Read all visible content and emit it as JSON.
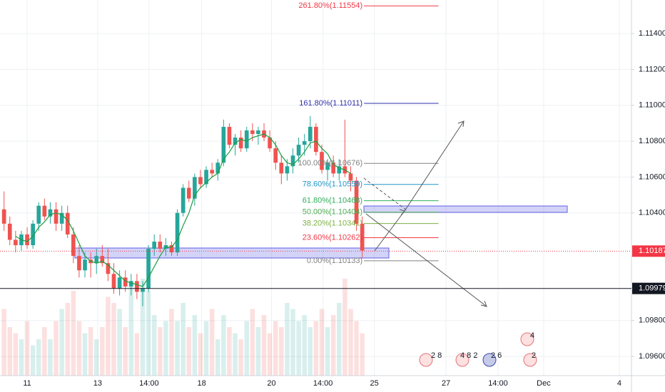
{
  "chart_data": {
    "type": "candlestick",
    "up_color": "#26a69a",
    "down_color": "#ef5350",
    "ohlc": [
      [
        1.1042,
        1.1052,
        1.103,
        1.1034
      ],
      [
        1.1034,
        1.1038,
        1.1022,
        1.1025
      ],
      [
        1.1025,
        1.103,
        1.1018,
        1.1022
      ],
      [
        1.1022,
        1.103,
        1.1019,
        1.1028
      ],
      [
        1.1028,
        1.1032,
        1.102,
        1.1022
      ],
      [
        1.1022,
        1.1036,
        1.102,
        1.1034
      ],
      [
        1.1034,
        1.1046,
        1.103,
        1.1044
      ],
      [
        1.1044,
        1.1048,
        1.1036,
        1.1038
      ],
      [
        1.1038,
        1.1046,
        1.1034,
        1.1042
      ],
      [
        1.1042,
        1.1046,
        1.103,
        1.1034
      ],
      [
        1.1034,
        1.1044,
        1.103,
        1.104
      ],
      [
        1.104,
        1.1044,
        1.1026,
        1.1028
      ],
      [
        1.1028,
        1.1032,
        1.1012,
        1.1016
      ],
      [
        1.1016,
        1.1022,
        1.1004,
        1.1008
      ],
      [
        1.1008,
        1.1018,
        1.1004,
        1.1014
      ],
      [
        1.1014,
        1.1018,
        1.1004,
        1.1012
      ],
      [
        1.1012,
        1.102,
        1.1006,
        1.1016
      ],
      [
        1.1016,
        1.1022,
        1.101,
        1.1012
      ],
      [
        1.1012,
        1.102,
        1.1002,
        1.1006
      ],
      [
        1.1006,
        1.1012,
        1.0995,
        1.0998
      ],
      [
        1.0998,
        1.1008,
        1.0994,
        1.1004
      ],
      [
        1.1004,
        1.1008,
        1.0996,
        1.0999
      ],
      [
        1.0999,
        1.1006,
        1.0994,
        1.1002
      ],
      [
        1.1002,
        1.1006,
        1.0992,
        1.0996
      ],
      [
        1.0996,
        1.1002,
        1.0988,
        1.0998
      ],
      [
        1.0998,
        1.1022,
        1.0996,
        1.102
      ],
      [
        1.102,
        1.1028,
        1.1016,
        1.1024
      ],
      [
        1.1024,
        1.1028,
        1.1018,
        1.102
      ],
      [
        1.102,
        1.1026,
        1.1016,
        1.1022
      ],
      [
        1.1022,
        1.1024,
        1.1016,
        1.1018
      ],
      [
        1.1018,
        1.1042,
        1.1016,
        1.104
      ],
      [
        1.104,
        1.1056,
        1.1038,
        1.1054
      ],
      [
        1.1054,
        1.1058,
        1.1046,
        1.1048
      ],
      [
        1.1048,
        1.1062,
        1.1044,
        1.106
      ],
      [
        1.106,
        1.1064,
        1.1054,
        1.1056
      ],
      [
        1.1056,
        1.1066,
        1.1054,
        1.1064
      ],
      [
        1.1064,
        1.1068,
        1.106,
        1.1062
      ],
      [
        1.1062,
        1.107,
        1.1058,
        1.1068
      ],
      [
        1.1068,
        1.1092,
        1.1066,
        1.1088
      ],
      [
        1.1088,
        1.109,
        1.1076,
        1.1078
      ],
      [
        1.1078,
        1.1084,
        1.1072,
        1.1082
      ],
      [
        1.1082,
        1.1086,
        1.1074,
        1.1076
      ],
      [
        1.1076,
        1.1088,
        1.1074,
        1.1086
      ],
      [
        1.1086,
        1.109,
        1.108,
        1.1084
      ],
      [
        1.1084,
        1.1088,
        1.1078,
        1.1086
      ],
      [
        1.1086,
        1.109,
        1.108,
        1.1082
      ],
      [
        1.1082,
        1.1086,
        1.1074,
        1.1076
      ],
      [
        1.1076,
        1.108,
        1.1064,
        1.1068
      ],
      [
        1.1068,
        1.1072,
        1.1056,
        1.1062
      ],
      [
        1.1062,
        1.107,
        1.1058,
        1.1066
      ],
      [
        1.1066,
        1.1076,
        1.1062,
        1.1072
      ],
      [
        1.1072,
        1.1082,
        1.1068,
        1.1078
      ],
      [
        1.1078,
        1.1084,
        1.1072,
        1.108
      ],
      [
        1.108,
        1.1094,
        1.1076,
        1.1088
      ],
      [
        1.1088,
        1.109,
        1.1072,
        1.1074
      ],
      [
        1.1074,
        1.1078,
        1.1062,
        1.1064
      ],
      [
        1.1064,
        1.107,
        1.1058,
        1.1068
      ],
      [
        1.1068,
        1.1072,
        1.106,
        1.1062
      ],
      [
        1.1062,
        1.107,
        1.1058,
        1.1066
      ],
      [
        1.1066,
        1.1092,
        1.106,
        1.1062
      ],
      [
        1.1062,
        1.1066,
        1.1052,
        1.1058
      ],
      [
        1.1058,
        1.106,
        1.103,
        1.1034
      ],
      [
        1.1034,
        1.1038,
        1.1015,
        1.1019
      ]
    ],
    "volumes": [
      55,
      40,
      35,
      30,
      45,
      25,
      30,
      40,
      30,
      45,
      55,
      60,
      70,
      45,
      35,
      40,
      30,
      40,
      65,
      60,
      55,
      40,
      75,
      35,
      80,
      70,
      50,
      40,
      45,
      55,
      45,
      60,
      40,
      50,
      35,
      45,
      55,
      30,
      50,
      40,
      35,
      30,
      45,
      55,
      40,
      50,
      35,
      45,
      40,
      60,
      55,
      45,
      50,
      40,
      45,
      55,
      40,
      50,
      60,
      80,
      55,
      45,
      35
    ],
    "ma": [
      null,
      null,
      1.1027,
      1.1025,
      1.1024,
      1.1027,
      1.1032,
      1.1035,
      1.1039,
      1.104,
      1.1039,
      1.1036,
      1.103,
      1.1023,
      1.1016,
      1.1013,
      1.1012,
      1.1013,
      1.1011,
      1.1008,
      1.1005,
      1.1002,
      1.1001,
      1.1,
      1.0999,
      1.1004,
      1.101,
      1.1016,
      1.1021,
      1.1021,
      1.1025,
      1.1033,
      1.104,
      1.105,
      1.1054,
      1.1057,
      1.106,
      1.1062,
      1.107,
      1.1074,
      1.1079,
      1.1081,
      1.108,
      1.1082,
      1.1083,
      1.1084,
      1.1082,
      1.1078,
      1.1072,
      1.1068,
      1.1067,
      1.107,
      1.1074,
      1.1079,
      1.108,
      1.1076,
      1.1073,
      1.1067,
      1.1065,
      1.1064,
      1.1062,
      null,
      null
    ],
    "ma_color": "#1b9e3e",
    "xlim": [
      -0.7,
      108.6
    ],
    "ylim": [
      1.09493,
      1.11587
    ],
    "xticks": [
      {
        "value": 4.0,
        "label": "11"
      },
      {
        "value": 16.2,
        "label": "13"
      },
      {
        "value": 25.1,
        "label": "14:00"
      },
      {
        "value": 34.2,
        "label": "18"
      },
      {
        "value": 46.3,
        "label": "20"
      },
      {
        "value": 55.2,
        "label": "14:00"
      },
      {
        "value": 64.1,
        "label": "25"
      },
      {
        "value": 76.5,
        "label": "27"
      },
      {
        "value": 85.5,
        "label": "14:00"
      },
      {
        "value": 93.4,
        "label": "Dec"
      },
      {
        "value": 106.5,
        "label": "4"
      }
    ],
    "yticks": [
      {
        "value": 1.096,
        "label": "1.09600"
      },
      {
        "value": 1.098,
        "label": "1.09800"
      },
      {
        "value": 1.104,
        "label": "1.10400"
      },
      {
        "value": 1.106,
        "label": "1.10600"
      },
      {
        "value": 1.108,
        "label": "1.10800"
      },
      {
        "value": 1.11,
        "label": "1.11000"
      },
      {
        "value": 1.112,
        "label": "1.11200"
      },
      {
        "value": 1.114,
        "label": "1.11400"
      }
    ],
    "grid": true,
    "fib_x": [
      62.3,
      75.2
    ],
    "fib_levels": [
      {
        "label": "261.80%(1.11554)",
        "price": 1.11554,
        "color": "#f23645"
      },
      {
        "label": "161.80%(1.11011)",
        "price": 1.11011,
        "color": "#2f2fa8"
      },
      {
        "label": "100.00%(1.10676)",
        "price": 1.10676,
        "color": "#808080"
      },
      {
        "label": "78.60%(1.10559)",
        "price": 1.10559,
        "color": "#2196c8"
      },
      {
        "label": "61.80%(1.10468)",
        "price": 1.10468,
        "color": "#2fae5a"
      },
      {
        "label": "50.00%(1.10404)",
        "price": 1.10404,
        "color": "#4caf50"
      },
      {
        "label": "38.20%(1.10341)",
        "price": 1.10341,
        "color": "#7cb342"
      },
      {
        "label": "23.60%(1.10262)",
        "price": 1.10262,
        "color": "#f23645"
      },
      {
        "label": "0.00%(1.10133)",
        "price": 1.10133,
        "color": "#808080"
      }
    ],
    "last_price": 1.10187,
    "last_color": "#f23645",
    "level_line": 1.09979,
    "level_color": "#131722",
    "events": [
      "2 8",
      "4 8 2",
      "2 6",
      "4",
      "2"
    ]
  }
}
